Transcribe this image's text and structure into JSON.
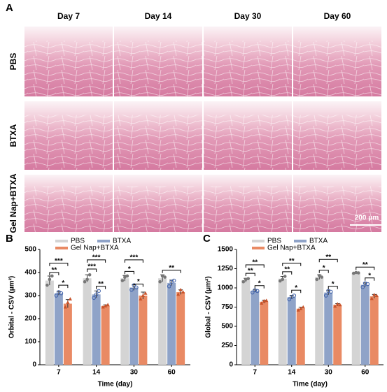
{
  "panel_a": {
    "label": "A",
    "columns": [
      "Day 7",
      "Day 14",
      "Day 30",
      "Day 60"
    ],
    "rows": [
      "PBS",
      "BTXA",
      "Gel Nap+BTXA"
    ],
    "scale_bar": "200 μm"
  },
  "chart_data": [
    {
      "type": "bar",
      "panel": "B",
      "x_label": "Time (day)",
      "y_label": "Orbital - CSV (μm²)",
      "categories": [
        "7",
        "14",
        "30",
        "60"
      ],
      "ylim": [
        0,
        500
      ],
      "yticks": [
        0,
        100,
        200,
        300,
        400,
        500
      ],
      "series": [
        {
          "name": "PBS",
          "color": "#d4d4d4",
          "values": [
            365,
            375,
            375,
            375
          ],
          "errors": [
            20,
            15,
            12,
            15
          ],
          "points": [
            [
              345,
              370,
              385
            ],
            [
              360,
              370,
              390
            ],
            [
              365,
              380,
              385
            ],
            [
              360,
              385,
              380
            ]
          ]
        },
        {
          "name": "BTXA",
          "color": "#8fa3c8",
          "values": [
            310,
            305,
            335,
            355
          ],
          "errors": [
            8,
            15,
            12,
            12
          ],
          "points": [
            [
              300,
              315,
              310
            ],
            [
              290,
              305,
              320
            ],
            [
              325,
              345,
              335
            ],
            [
              340,
              360,
              365
            ]
          ]
        },
        {
          "name": "Gel Nap+BTXA",
          "color": "#e98a64",
          "values": [
            265,
            255,
            300,
            315
          ],
          "errors": [
            18,
            5,
            15,
            10
          ],
          "points": [
            [
              250,
              270,
              285
            ],
            [
              250,
              255,
              260
            ],
            [
              285,
              300,
              310
            ],
            [
              305,
              325,
              315
            ]
          ]
        }
      ],
      "brackets": [
        {
          "category": 0,
          "series": [
            0,
            1
          ],
          "y": 400,
          "label": "**"
        },
        {
          "category": 0,
          "series": [
            1,
            2
          ],
          "y": 345,
          "label": "*"
        },
        {
          "category": 0,
          "series": [
            0,
            2
          ],
          "y": 440,
          "label": "***"
        },
        {
          "category": 1,
          "series": [
            0,
            1
          ],
          "y": 415,
          "label": "***"
        },
        {
          "category": 1,
          "series": [
            1,
            2
          ],
          "y": 340,
          "label": "**"
        },
        {
          "category": 1,
          "series": [
            0,
            2
          ],
          "y": 455,
          "label": "***"
        },
        {
          "category": 2,
          "series": [
            0,
            1
          ],
          "y": 405,
          "label": "*"
        },
        {
          "category": 2,
          "series": [
            1,
            2
          ],
          "y": 350,
          "label": "*"
        },
        {
          "category": 2,
          "series": [
            0,
            2
          ],
          "y": 455,
          "label": "***"
        },
        {
          "category": 3,
          "series": [
            0,
            2
          ],
          "y": 410,
          "label": "**"
        }
      ]
    },
    {
      "type": "bar",
      "panel": "C",
      "x_label": "Time (day)",
      "y_label": "Global - CSV (μm²)",
      "categories": [
        "7",
        "14",
        "30",
        "60"
      ],
      "ylim": [
        0,
        1500
      ],
      "yticks": [
        0,
        250,
        500,
        750,
        1000,
        1250,
        1500
      ],
      "series": [
        {
          "name": "PBS",
          "color": "#d4d4d4",
          "values": [
            1100,
            1120,
            1140,
            1195
          ],
          "errors": [
            25,
            30,
            30,
            8
          ],
          "points": [
            [
              1080,
              1110,
              1120
            ],
            [
              1090,
              1110,
              1150
            ],
            [
              1110,
              1160,
              1140
            ],
            [
              1190,
              1200,
              1195
            ]
          ]
        },
        {
          "name": "BTXA",
          "color": "#8fa3c8",
          "values": [
            960,
            880,
            940,
            1040
          ],
          "errors": [
            15,
            25,
            30,
            25
          ],
          "points": [
            [
              940,
              970,
              960
            ],
            [
              850,
              880,
              900
            ],
            [
              900,
              960,
              950
            ],
            [
              1010,
              1060,
              1050
            ]
          ]
        },
        {
          "name": "Gel Nap+BTXA",
          "color": "#e98a64",
          "values": [
            820,
            730,
            780,
            890
          ],
          "errors": [
            20,
            20,
            15,
            25
          ],
          "points": [
            [
              800,
              830,
              835
            ],
            [
              710,
              730,
              750
            ],
            [
              760,
              790,
              780
            ],
            [
              860,
              910,
              900
            ]
          ]
        }
      ],
      "brackets": [
        {
          "category": 0,
          "series": [
            0,
            1
          ],
          "y": 1190,
          "label": "**"
        },
        {
          "category": 0,
          "series": [
            1,
            2
          ],
          "y": 1030,
          "label": "*"
        },
        {
          "category": 0,
          "series": [
            0,
            2
          ],
          "y": 1300,
          "label": "**"
        },
        {
          "category": 1,
          "series": [
            0,
            1
          ],
          "y": 1210,
          "label": "**"
        },
        {
          "category": 1,
          "series": [
            1,
            2
          ],
          "y": 970,
          "label": "*"
        },
        {
          "category": 1,
          "series": [
            0,
            2
          ],
          "y": 1320,
          "label": "**"
        },
        {
          "category": 2,
          "series": [
            0,
            1
          ],
          "y": 1230,
          "label": "*"
        },
        {
          "category": 2,
          "series": [
            1,
            2
          ],
          "y": 1020,
          "label": "*"
        },
        {
          "category": 2,
          "series": [
            0,
            2
          ],
          "y": 1370,
          "label": "**"
        },
        {
          "category": 3,
          "series": [
            1,
            2
          ],
          "y": 1130,
          "label": "*"
        },
        {
          "category": 3,
          "series": [
            0,
            2
          ],
          "y": 1270,
          "label": "**"
        }
      ]
    }
  ]
}
